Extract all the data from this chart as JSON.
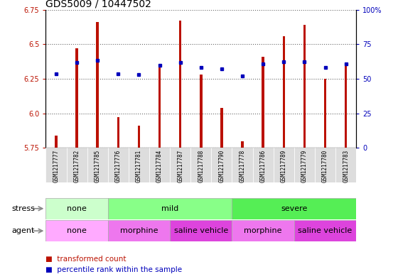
{
  "title": "GDS5009 / 10447502",
  "samples": [
    "GSM1217777",
    "GSM1217782",
    "GSM1217785",
    "GSM1217776",
    "GSM1217781",
    "GSM1217784",
    "GSM1217787",
    "GSM1217788",
    "GSM1217790",
    "GSM1217778",
    "GSM1217786",
    "GSM1217789",
    "GSM1217779",
    "GSM1217780",
    "GSM1217783"
  ],
  "bar_values": [
    5.84,
    6.47,
    6.66,
    5.97,
    5.91,
    6.33,
    6.67,
    6.28,
    6.04,
    5.8,
    6.41,
    6.56,
    6.64,
    6.25,
    6.36
  ],
  "percentile_values": [
    6.285,
    6.37,
    6.385,
    6.285,
    6.28,
    6.35,
    6.37,
    6.33,
    6.32,
    6.27,
    6.36,
    6.375,
    6.375,
    6.33,
    6.36
  ],
  "ymin": 5.75,
  "ymax": 6.75,
  "bar_color": "#bb1100",
  "dot_color": "#0000bb",
  "bar_baseline": 5.75,
  "yticks_left": [
    5.75,
    6.0,
    6.25,
    6.5,
    6.75
  ],
  "yticks_right": [
    0,
    25,
    50,
    75,
    100
  ],
  "stress_groups": [
    {
      "label": "none",
      "start": 0,
      "end": 3,
      "color": "#ccffcc"
    },
    {
      "label": "mild",
      "start": 3,
      "end": 9,
      "color": "#88ff88"
    },
    {
      "label": "severe",
      "start": 9,
      "end": 15,
      "color": "#55ee55"
    }
  ],
  "agent_groups": [
    {
      "label": "none",
      "start": 0,
      "end": 3,
      "color": "#ffaaff"
    },
    {
      "label": "morphine",
      "start": 3,
      "end": 6,
      "color": "#ee77ee"
    },
    {
      "label": "saline vehicle",
      "start": 6,
      "end": 9,
      "color": "#dd44dd"
    },
    {
      "label": "morphine",
      "start": 9,
      "end": 12,
      "color": "#ee77ee"
    },
    {
      "label": "saline vehicle",
      "start": 12,
      "end": 15,
      "color": "#dd44dd"
    }
  ],
  "legend_bar_label": "transformed count",
  "legend_dot_label": "percentile rank within the sample",
  "stress_label": "stress",
  "agent_label": "agent",
  "title_fontsize": 10,
  "tick_fontsize": 7,
  "row_label_fontsize": 8,
  "group_fontsize": 8,
  "legend_fontsize": 7.5
}
